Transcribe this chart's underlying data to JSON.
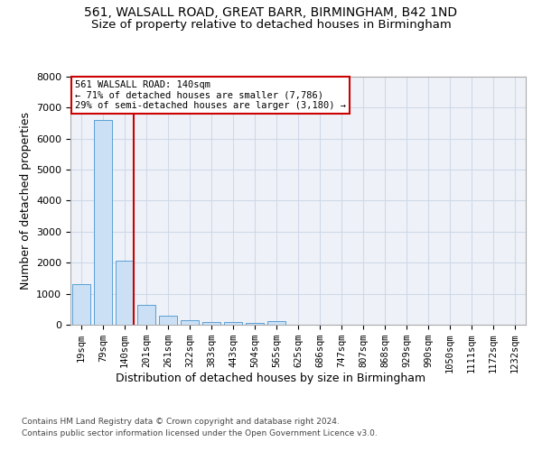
{
  "title_line1": "561, WALSALL ROAD, GREAT BARR, BIRMINGHAM, B42 1ND",
  "title_line2": "Size of property relative to detached houses in Birmingham",
  "xlabel": "Distribution of detached houses by size in Birmingham",
  "ylabel": "Number of detached properties",
  "categories": [
    "19sqm",
    "79sqm",
    "140sqm",
    "201sqm",
    "261sqm",
    "322sqm",
    "383sqm",
    "443sqm",
    "504sqm",
    "565sqm",
    "625sqm",
    "686sqm",
    "747sqm",
    "807sqm",
    "868sqm",
    "929sqm",
    "990sqm",
    "1050sqm",
    "1111sqm",
    "1172sqm",
    "1232sqm"
  ],
  "values": [
    1300,
    6600,
    2080,
    650,
    285,
    140,
    90,
    75,
    70,
    115,
    0,
    0,
    0,
    0,
    0,
    0,
    0,
    0,
    0,
    0,
    0
  ],
  "bar_color": "#cce0f5",
  "bar_edge_color": "#5a9fd4",
  "highlight_index": 2,
  "highlight_line_color": "#cc0000",
  "annotation_text": "561 WALSALL ROAD: 140sqm\n← 71% of detached houses are smaller (7,786)\n29% of semi-detached houses are larger (3,180) →",
  "annotation_box_color": "#ffffff",
  "annotation_box_edge": "#cc0000",
  "footer_line1": "Contains HM Land Registry data © Crown copyright and database right 2024.",
  "footer_line2": "Contains public sector information licensed under the Open Government Licence v3.0.",
  "ylim": [
    0,
    8000
  ],
  "yticks": [
    0,
    1000,
    2000,
    3000,
    4000,
    5000,
    6000,
    7000,
    8000
  ],
  "grid_color": "#d0d8e8",
  "bg_color": "#eef2f8",
  "title_fontsize": 10,
  "subtitle_fontsize": 9.5,
  "axis_label_fontsize": 9,
  "tick_fontsize": 7.5,
  "footer_fontsize": 6.5
}
